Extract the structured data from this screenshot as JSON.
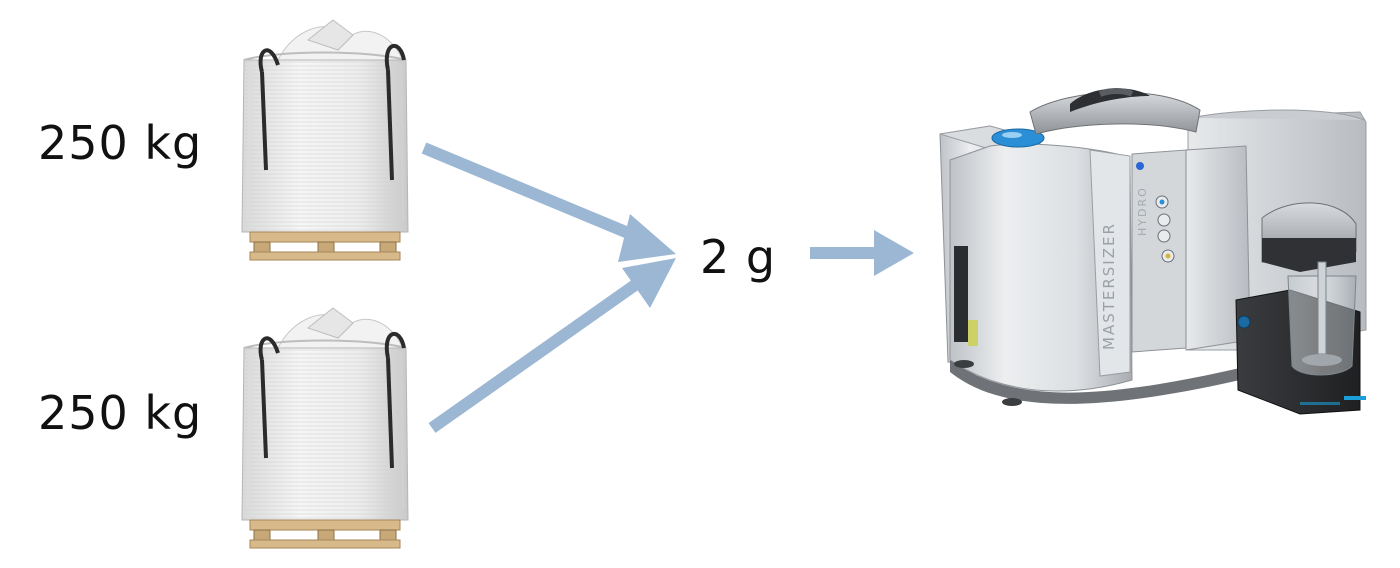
{
  "labels": {
    "top_weight": "250 kg",
    "bottom_weight": "250 kg",
    "sample_weight": "2 g"
  },
  "machine": {
    "brand_text": "MASTERSIZER",
    "unit_text": "HYDRO"
  },
  "colors": {
    "arrow": "#9cb7d3",
    "machine_accent": "#2a8fd6",
    "band_accent": "#1a9fd9"
  },
  "icons": {
    "bulk_bag": "bulk-bag-on-pallet",
    "analyzer": "laser-diffraction-particle-size-analyzer"
  }
}
